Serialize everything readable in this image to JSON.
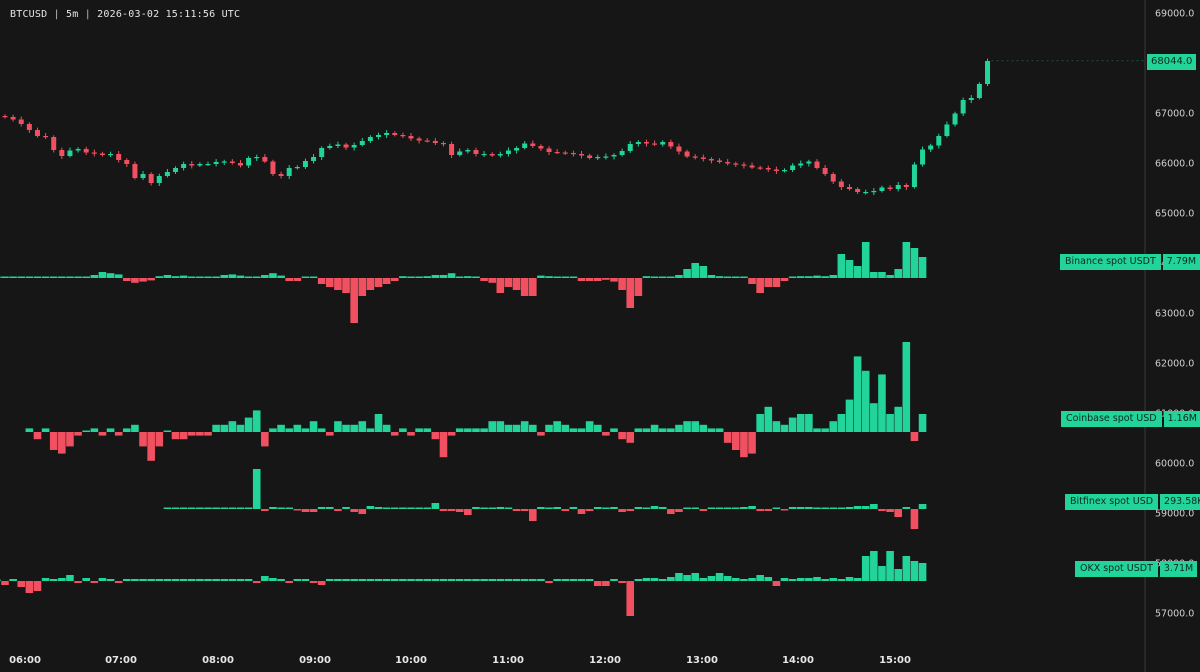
{
  "header": {
    "symbol": "BTCUSD",
    "interval": "5m",
    "timestamp": "2026-03-02 15:11:56 UTC"
  },
  "colors": {
    "background": "#161616",
    "up": "#22d39a",
    "down": "#f0505f",
    "axis_text": "#d0d0d0",
    "axis_line": "#3a3a3a"
  },
  "chart_data": {
    "type": "candlestick",
    "price_axis": {
      "ticks": [
        "69000.0",
        "68000.0",
        "67000.0",
        "66000.0",
        "65000.0",
        "64000.0",
        "63000.0",
        "62000.0",
        "61000.0",
        "60000.0",
        "59000.0",
        "58000.0",
        "57000.0"
      ],
      "range": [
        56500,
        69200
      ]
    },
    "time_axis": {
      "ticks": [
        "06:00",
        "07:00",
        "08:00",
        "09:00",
        "10:00",
        "11:00",
        "12:00",
        "13:00",
        "14:00",
        "15:00"
      ]
    },
    "last_price": "68044.0",
    "close": [
      66920,
      66870,
      66780,
      66660,
      66540,
      66520,
      66260,
      66140,
      66250,
      66280,
      66210,
      66190,
      66160,
      66180,
      66060,
      65980,
      65700,
      65780,
      65600,
      65740,
      65820,
      65900,
      65980,
      65950,
      65980,
      65980,
      66020,
      66030,
      66000,
      65950,
      66100,
      66120,
      66030,
      65780,
      65740,
      65900,
      65920,
      66040,
      66120,
      66300,
      66340,
      66370,
      66310,
      66360,
      66440,
      66520,
      66560,
      66600,
      66560,
      66540,
      66490,
      66450,
      66440,
      66400,
      66380,
      66160,
      66230,
      66260,
      66180,
      66180,
      66150,
      66180,
      66250,
      66300,
      66390,
      66340,
      66290,
      66220,
      66210,
      66200,
      66180,
      66150,
      66100,
      66120,
      66130,
      66160,
      66240,
      66380,
      66420,
      66390,
      66370,
      66420,
      66330,
      66230,
      66130,
      66110,
      66080,
      66050,
      66020,
      65990,
      65970,
      65950,
      65910,
      65900,
      65870,
      65840,
      65860,
      65950,
      65990,
      66030,
      65900,
      65780,
      65630,
      65520,
      65480,
      65420,
      65420,
      65440,
      65510,
      65480,
      65560,
      65520,
      65970,
      66270,
      66350,
      66540,
      66770,
      66990,
      67260,
      67300,
      67580,
      68040
    ],
    "series": [
      {
        "name": "Binance spot USDT",
        "value_label": "7.79M",
        "values": [
          0,
          0,
          0,
          0,
          0,
          0,
          0,
          0,
          0,
          0,
          0,
          0,
          0,
          0,
          0.05,
          0.1,
          0.08,
          0.06,
          -0.05,
          -0.08,
          -0.06,
          -0.04,
          0.03,
          0.05,
          0.03,
          0.04,
          0.02,
          0.02,
          0.02,
          0.02,
          0.05,
          0.06,
          0.04,
          0.02,
          0.02,
          0.05,
          0.08,
          0.04,
          -0.05,
          -0.05,
          0.02,
          0.02,
          -0.1,
          -0.15,
          -0.2,
          -0.25,
          -0.75,
          -0.3,
          -0.2,
          -0.15,
          -0.1,
          -0.05,
          0.03,
          0.02,
          0.02,
          0.03,
          0.05,
          0.05,
          0.08,
          0.02,
          0.03,
          0.02,
          -0.05,
          -0.08,
          -0.25,
          -0.15,
          -0.2,
          -0.3,
          -0.3,
          0.04,
          0.03,
          0.02,
          0.01,
          0.01,
          -0.05,
          -0.05,
          -0.05,
          -0.03,
          -0.06,
          -0.2,
          -0.5,
          -0.3,
          0.03,
          0.02,
          0.02,
          0.02,
          0.05,
          0.15,
          0.25,
          0.2,
          0.05,
          0.03,
          0.02,
          0.02,
          0.02,
          -0.1,
          -0.25,
          -0.15,
          -0.15,
          -0.05,
          0.02,
          0.03,
          0.03,
          0.04,
          0.03,
          0.05,
          0.4,
          0.3,
          0.2,
          0.6,
          0.1,
          0.1,
          0.05,
          0.15,
          0.6,
          0.5,
          0.35
        ]
      },
      {
        "name": "Coinbase spot USD",
        "value_label": "1.16M",
        "values": [
          0.02,
          -0.04,
          0.02,
          -0.1,
          -0.12,
          -0.08,
          -0.02,
          0,
          0.02,
          -0.02,
          0.02,
          -0.02,
          0.02,
          0.04,
          -0.08,
          -0.16,
          -0.08,
          0,
          -0.04,
          -0.04,
          -0.02,
          -0.02,
          -0.02,
          0.04,
          0.04,
          0.06,
          0.04,
          0.08,
          0.12,
          -0.08,
          0.02,
          0.04,
          0.02,
          0.04,
          0.02,
          0.06,
          0.02,
          -0.02,
          0.06,
          0.04,
          0.04,
          0.06,
          0.02,
          0.1,
          0.04,
          -0.02,
          0.02,
          -0.02,
          0.02,
          0.02,
          -0.04,
          -0.14,
          -0.02,
          0.02,
          0.02,
          0.02,
          0.02,
          0.06,
          0.06,
          0.04,
          0.04,
          0.06,
          0.04,
          -0.02,
          0.04,
          0.06,
          0.04,
          0.02,
          0.02,
          0.06,
          0.04,
          -0.02,
          0.02,
          -0.04,
          -0.06,
          0.02,
          0.02,
          0.04,
          0.02,
          0.02,
          0.04,
          0.06,
          0.06,
          0.04,
          0.02,
          0.02,
          -0.06,
          -0.1,
          -0.14,
          -0.12,
          0.1,
          0.14,
          0.06,
          0.04,
          0.08,
          0.1,
          0.1,
          0.02,
          0.02,
          0.06,
          0.1,
          0.18,
          0.42,
          0.34,
          0.16,
          0.32,
          0.1,
          0.14,
          0.5,
          -0.05,
          0.1
        ]
      },
      {
        "name": "Bitfinex spot USD",
        "value_label": "293.58K",
        "values": [
          0,
          0,
          0,
          0,
          0,
          0,
          0,
          0,
          0,
          0,
          0,
          0.4,
          -0.02,
          0.02,
          0.01,
          0.01,
          -0.01,
          -0.03,
          -0.03,
          0.02,
          0.02,
          -0.02,
          0.02,
          -0.03,
          -0.05,
          0.03,
          0.02,
          0.01,
          0.01,
          0.01,
          0,
          0,
          0,
          0.06,
          -0.02,
          -0.02,
          -0.03,
          -0.06,
          0.02,
          0.01,
          0.01,
          0.02,
          0.01,
          -0.02,
          -0.02,
          -0.12,
          0.02,
          0,
          0.02,
          -0.02,
          0.02,
          -0.05,
          -0.02,
          0.02,
          0.01,
          0.02,
          -0.03,
          -0.02,
          0.02,
          0.01,
          0.03,
          0.02,
          -0.05,
          -0.03,
          0.01,
          0.01,
          -0.02,
          0,
          0,
          0,
          0,
          0.02,
          0.03,
          -0.02,
          -0.02,
          0.01,
          -0.01,
          0.02,
          0.02,
          0.02,
          0.01,
          0.01,
          0.01,
          0.01,
          0.02,
          0.03,
          0.03,
          0.05,
          -0.02,
          -0.03,
          -0.08,
          0.02,
          -0.2,
          0.05
        ]
      },
      {
        "name": "OKX spot USDT",
        "value_label": "3.71M",
        "values": [
          0,
          0,
          0,
          0,
          0,
          0,
          0,
          0,
          0,
          0,
          0,
          0,
          -0.04,
          0.02,
          -0.06,
          -0.12,
          -0.1,
          0.03,
          0.02,
          0.03,
          0.06,
          -0.02,
          0.03,
          -0.02,
          0.03,
          0.02,
          -0.02,
          0.02,
          0.02,
          0.02,
          0.02,
          0.02,
          0.02,
          0.02,
          0.02,
          0.02,
          0.02,
          0.02,
          0.02,
          0.02,
          0.02,
          0.02,
          0.02,
          -0.02,
          0.05,
          0.03,
          0.02,
          -0.02,
          0.02,
          0.02,
          -0.02,
          -0.04,
          0.02,
          0.02,
          0.02,
          0.02,
          0.02,
          0.02,
          0.02,
          0.02,
          0.02,
          0.02,
          0.02,
          0.02,
          0.02,
          0.02,
          0.02,
          0.02,
          0.02,
          0.02,
          0.02,
          0.02,
          0.02,
          0.02,
          0.02,
          0.02,
          0.02,
          0.02,
          0.02,
          -0.02,
          0.02,
          0.02,
          0.02,
          0.02,
          0.02,
          -0.05,
          -0.05,
          0.02,
          -0.02,
          -0.35,
          0.02,
          0.03,
          0.03,
          0.02,
          0.04,
          0.08,
          0.06,
          0.08,
          0.03,
          0.05,
          0.08,
          0.05,
          0.03,
          0.02,
          0.03,
          0.06,
          0.04,
          -0.05,
          0.03,
          0.02,
          0.03,
          0.03,
          0.04,
          0.02,
          0.03,
          0.02,
          0.04,
          0.03,
          0.25,
          0.3,
          0.15,
          0.3,
          0.12,
          0.25,
          0.2,
          0.18
        ]
      }
    ]
  }
}
